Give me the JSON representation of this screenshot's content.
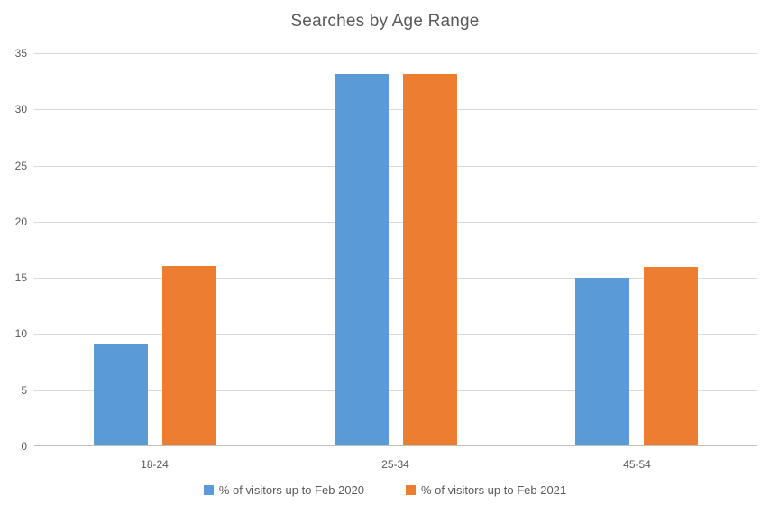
{
  "chart_data": {
    "type": "bar",
    "title": "Searches by Age Range",
    "categories": [
      "18-24",
      "25-34",
      "45-54"
    ],
    "series": [
      {
        "name": "% of visitors up to Feb 2020",
        "color": "#5B9BD5",
        "values": [
          9,
          33.1,
          14.9
        ]
      },
      {
        "name": "% of visitors up to Feb 2021",
        "color": "#ED7D31",
        "values": [
          16,
          33.1,
          15.9
        ]
      }
    ],
    "xlabel": "",
    "ylabel": "",
    "ylim": [
      0,
      35
    ],
    "yticks": [
      0,
      5,
      10,
      15,
      20,
      25,
      30,
      35
    ],
    "grid": true,
    "legend_position": "bottom",
    "styles": {
      "grid_color": "#D9D9D9",
      "axis_line_color": "#BFBFBF",
      "tick_text_color": "#595959",
      "title_color": "#595959",
      "background": "#FFFFFF"
    }
  }
}
